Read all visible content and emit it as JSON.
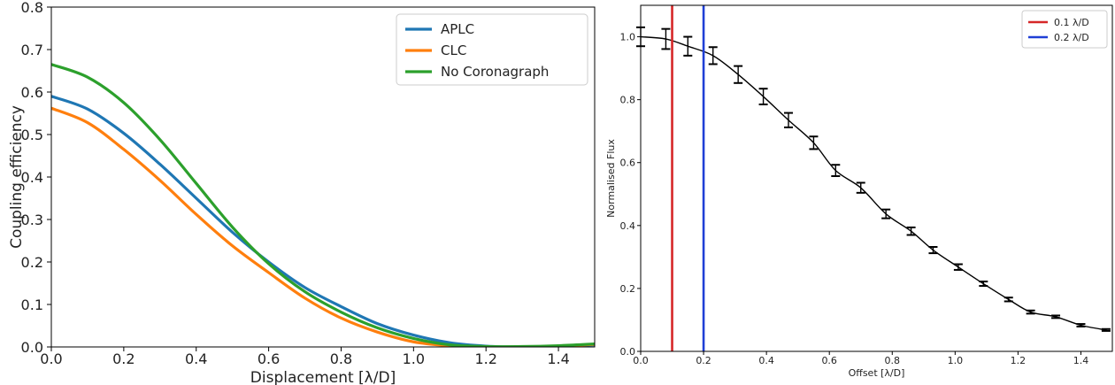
{
  "chart_data": [
    {
      "type": "line",
      "title": "",
      "xlabel": "Displacement [λ/D]",
      "ylabel": "Coupling efficiency",
      "xlim": [
        0,
        1.5
      ],
      "ylim": [
        0,
        0.8
      ],
      "xticks": [
        "0.0",
        "0.2",
        "0.4",
        "0.6",
        "0.8",
        "1.0",
        "1.2",
        "1.4"
      ],
      "yticks": [
        "0.0",
        "0.1",
        "0.2",
        "0.3",
        "0.4",
        "0.5",
        "0.6",
        "0.7",
        "0.8"
      ],
      "grid": false,
      "legend": "top-right",
      "x": [
        0,
        0.1,
        0.2,
        0.3,
        0.4,
        0.5,
        0.6,
        0.7,
        0.8,
        0.9,
        1.0,
        1.1,
        1.2,
        1.3,
        1.4,
        1.5
      ],
      "series": [
        {
          "name": "APLC",
          "color": "#1f77b4",
          "values": [
            0.59,
            0.56,
            0.503,
            0.43,
            0.35,
            0.27,
            0.2,
            0.14,
            0.095,
            0.055,
            0.028,
            0.01,
            0.002,
            0.0,
            0.002,
            0.005
          ]
        },
        {
          "name": "CLC",
          "color": "#ff7f0e",
          "values": [
            0.562,
            0.528,
            0.465,
            0.392,
            0.312,
            0.238,
            0.175,
            0.115,
            0.068,
            0.035,
            0.012,
            0.003,
            0.0,
            0.0,
            0.002,
            0.006
          ]
        },
        {
          "name": "No Coronagraph",
          "color": "#2ca02c",
          "values": [
            0.665,
            0.635,
            0.575,
            0.488,
            0.385,
            0.282,
            0.196,
            0.13,
            0.082,
            0.045,
            0.02,
            0.005,
            0.001,
            0.001,
            0.003,
            0.007
          ]
        }
      ]
    },
    {
      "type": "line",
      "title": "",
      "xlabel": "Offset [λ/D]",
      "ylabel": "Normalised Flux",
      "xlim": [
        0,
        1.5
      ],
      "ylim": [
        0,
        1.1
      ],
      "xticks": [
        "0.0",
        "0.2",
        "0.4",
        "0.6",
        "0.8",
        "1.0",
        "1.2",
        "1.4"
      ],
      "yticks": [
        "0.0",
        "0.2",
        "0.4",
        "0.6",
        "0.8",
        "1.0"
      ],
      "grid": false,
      "legend": "top-right",
      "vlines": [
        {
          "name": "0.1 λ/D",
          "x": 0.1,
          "color": "#d62728"
        },
        {
          "name": "0.2 λ/D",
          "x": 0.2,
          "color": "#1f3fd6"
        }
      ],
      "series": [
        {
          "name": "",
          "color": "#000000",
          "x": [
            0.0,
            0.08,
            0.15,
            0.23,
            0.31,
            0.39,
            0.47,
            0.55,
            0.62,
            0.7,
            0.78,
            0.86,
            0.93,
            1.01,
            1.09,
            1.17,
            1.24,
            1.32,
            1.4,
            1.48
          ],
          "values": [
            1.0,
            0.993,
            0.97,
            0.94,
            0.88,
            0.81,
            0.735,
            0.663,
            0.575,
            0.52,
            0.437,
            0.382,
            0.322,
            0.268,
            0.215,
            0.165,
            0.125,
            0.11,
            0.083,
            0.068
          ],
          "errors": [
            0.03,
            0.032,
            0.03,
            0.027,
            0.027,
            0.025,
            0.023,
            0.02,
            0.018,
            0.016,
            0.014,
            0.012,
            0.01,
            0.009,
            0.007,
            0.006,
            0.005,
            0.004,
            0.004,
            0.003
          ]
        }
      ]
    }
  ]
}
